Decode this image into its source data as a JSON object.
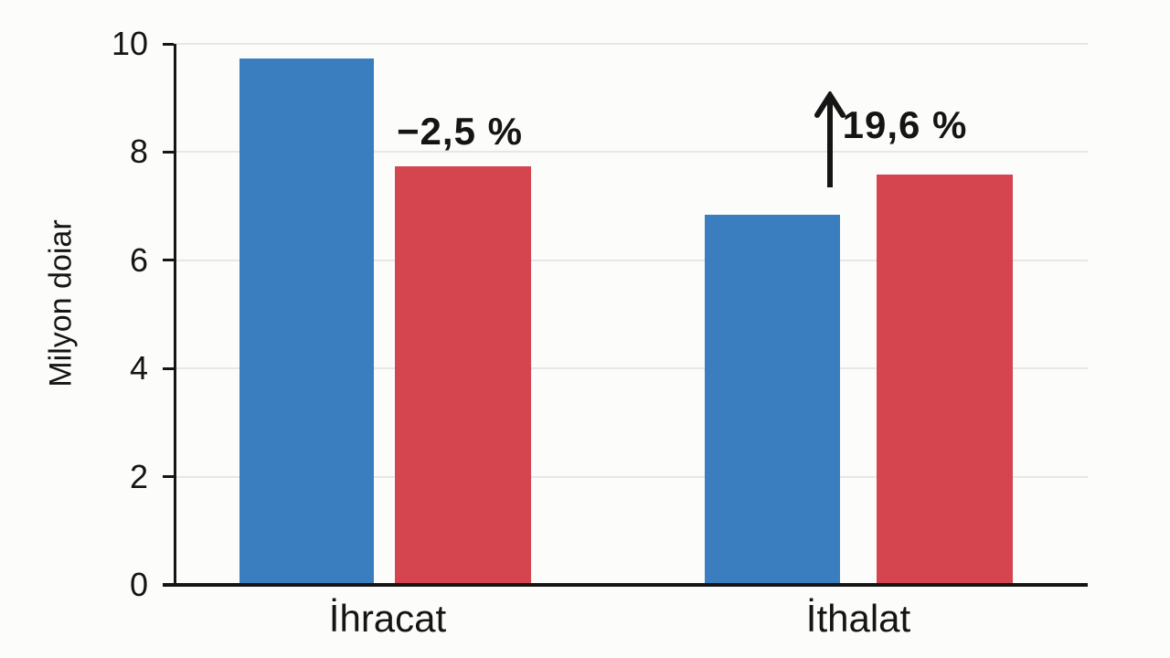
{
  "chart_data": {
    "type": "bar",
    "title": "",
    "ylabel": "Milyon doiar",
    "xlabel": "",
    "categories": [
      "İhracat",
      "İthalat"
    ],
    "series": [
      {
        "color_name": "blue",
        "color": "#3b7ec0",
        "values": [
          9.7,
          6.8
        ]
      },
      {
        "color_name": "red",
        "color": "#d4454f",
        "values": [
          7.7,
          7.55
        ]
      }
    ],
    "annotations": [
      {
        "category": "İhracat",
        "text": "−2,5 %",
        "arrow": false
      },
      {
        "category": "İthalat",
        "text": "19,6 %",
        "arrow": true
      }
    ],
    "ylim": [
      0,
      10
    ],
    "yticks": [
      0,
      2,
      4,
      6,
      8,
      10
    ],
    "grid": true,
    "legend": "none"
  },
  "colors": {
    "background": "#fcfcfa",
    "axis": "#151515",
    "grid": "#e7e7e7",
    "text": "#151515",
    "bar_blue": "#3b7ec0",
    "bar_red": "#d4454f"
  }
}
